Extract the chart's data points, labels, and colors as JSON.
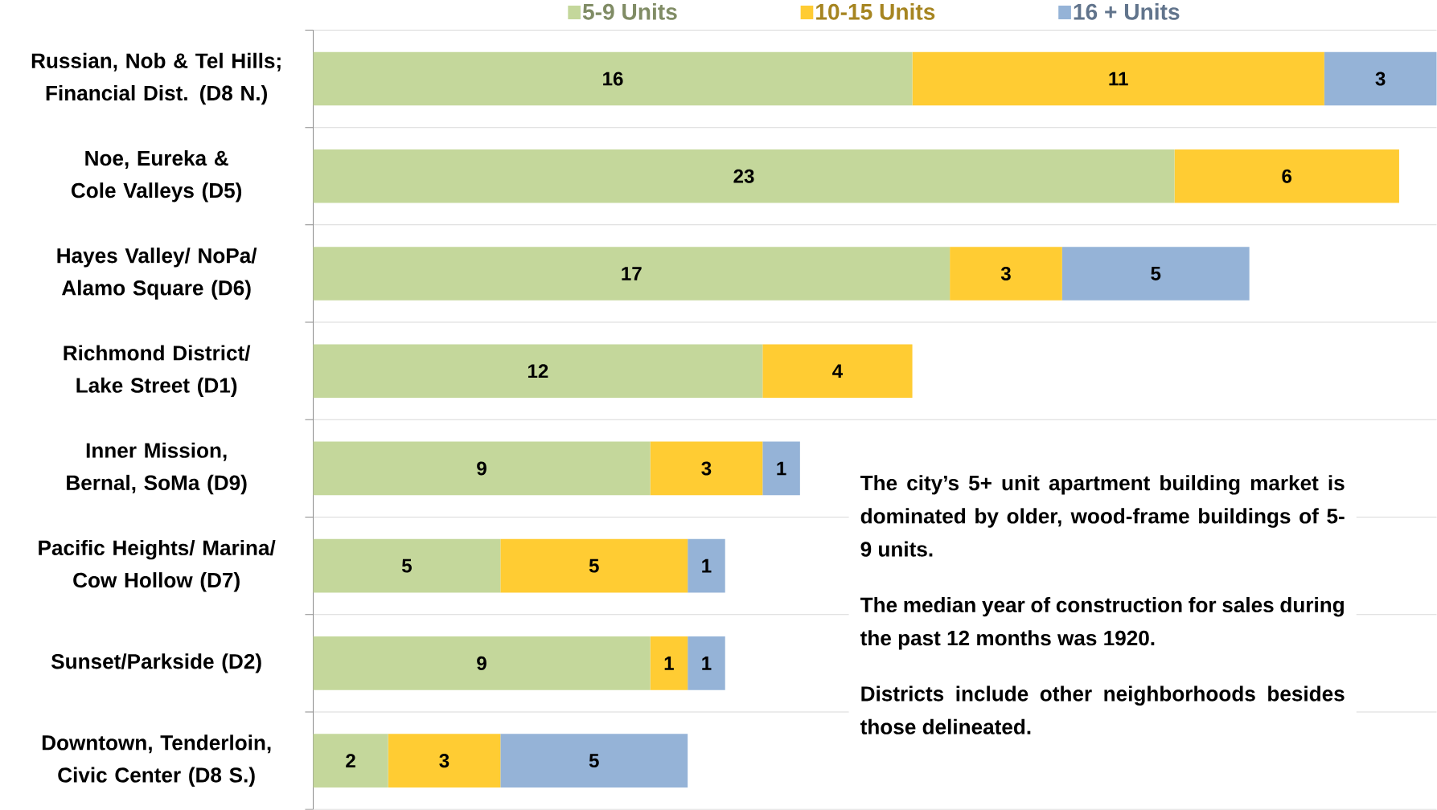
{
  "chart_data": {
    "type": "bar",
    "orientation": "horizontal",
    "stacked": true,
    "data_labels": true,
    "grid": "y",
    "legend": "top",
    "categories": [
      "Russian, Nob & Tel Hills; Financial Dist. (D8 N.)",
      "Noe, Eureka & Cole Valleys (D5)",
      "Hayes Valley/ NoPa/ Alamo Square (D6)",
      "Richmond District/ Lake Street (D1)",
      "Inner Mission, Bernal, SoMa (D9)",
      "Pacific Heights/ Marina/ Cow Hollow (D7)",
      "Sunset/Parkside (D2)",
      "Downtown, Tenderloin, Civic Center (D8 S.)"
    ],
    "series": [
      {
        "name": "5-9 Units",
        "color": "#c4d79b",
        "values": [
          16,
          23,
          17,
          12,
          9,
          5,
          9,
          2
        ]
      },
      {
        "name": "10-15 Units",
        "color": "#ffcc33",
        "values": [
          11,
          6,
          3,
          4,
          3,
          5,
          1,
          3
        ]
      },
      {
        "name": "16 + Units",
        "color": "#95b3d7",
        "values": [
          3,
          null,
          5,
          null,
          1,
          1,
          1,
          5
        ]
      }
    ],
    "annotations": [
      "The city’s 5+ unit apartment building market is dominated by older, wood-frame buildings of 5-9 units.",
      "The median year of construction for sales during the past 12 months was 1920.",
      "Districts include other neighborhoods besides those delineated."
    ]
  }
}
